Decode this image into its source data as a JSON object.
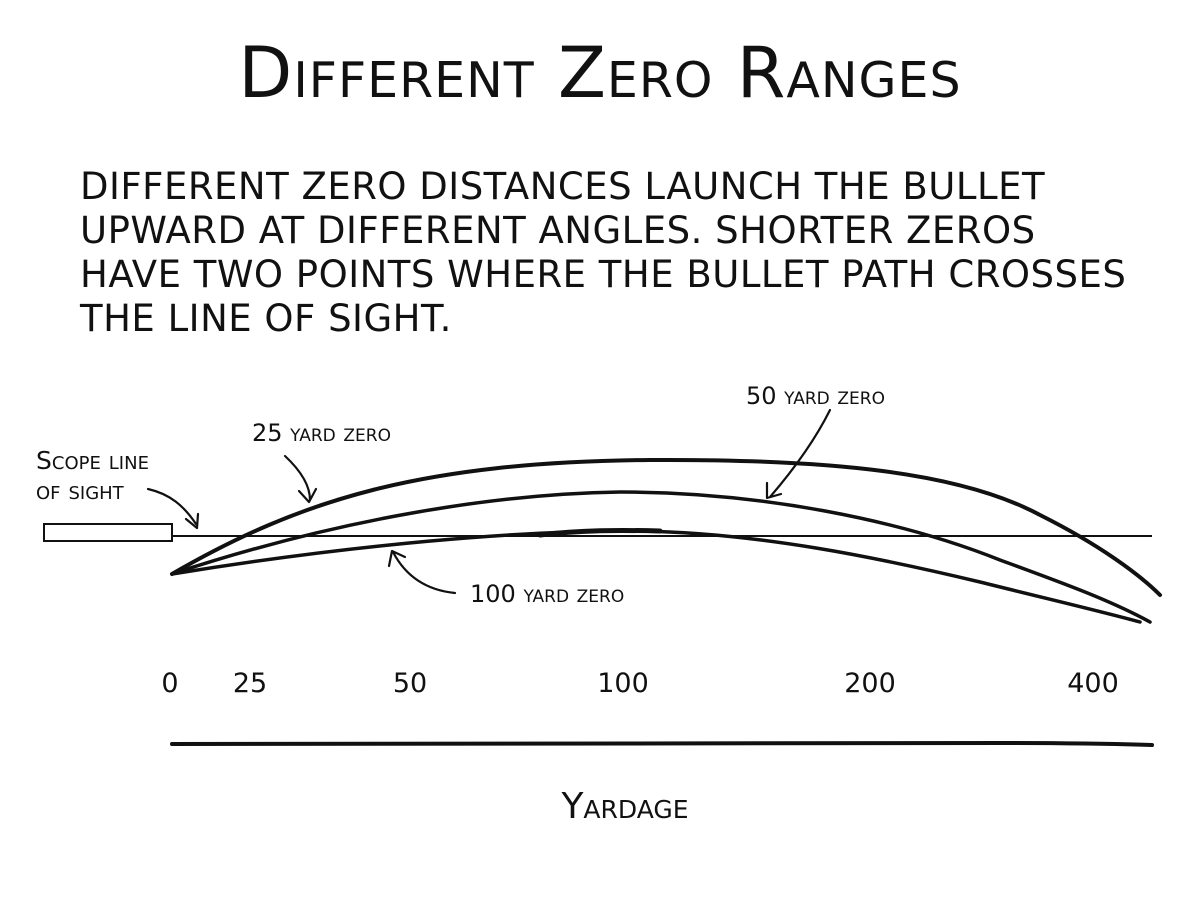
{
  "title": "Different Zero Ranges",
  "caption": "Different zero distances launch the bullet upward at different angles. Shorter zeros have two points where the bullet path crosses the line of sight.",
  "labels": {
    "scope_line_1": "Scope line",
    "scope_line_2": "of sight",
    "zero_25": "25 yard zero",
    "zero_50": "50 yard zero",
    "zero_100": "100 yard zero"
  },
  "axis": {
    "ticks": [
      "0",
      "25",
      "50",
      "100",
      "200",
      "400"
    ],
    "label": "Yardage"
  },
  "colors": {
    "ink": "#111111",
    "background": "#ffffff"
  }
}
